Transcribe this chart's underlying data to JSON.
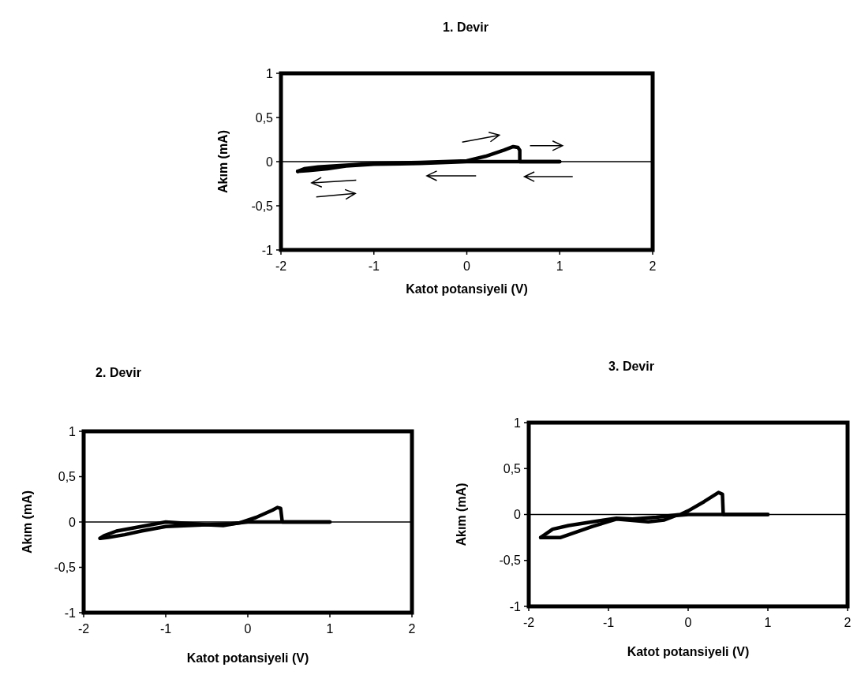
{
  "chart_data": [
    {
      "type": "line",
      "title": "1. Devir",
      "xlabel": "Katot potansiyeli (V)",
      "ylabel": "Akım (mA)",
      "xlim": [
        -2,
        2
      ],
      "ylim": [
        -1,
        1
      ],
      "xticks": [
        -2,
        -1,
        0,
        1,
        2
      ],
      "yticks": [
        {
          "value": -1,
          "label": "-1"
        },
        {
          "value": -0.5,
          "label": "-0,5"
        },
        {
          "value": 0,
          "label": "0"
        },
        {
          "value": 0.5,
          "label": "0,5"
        },
        {
          "value": 1,
          "label": "1"
        }
      ],
      "ref_lines": [
        {
          "axis": "y",
          "value": 0,
          "color": "#000000"
        }
      ],
      "series": [
        {
          "color": "#000000",
          "x": [
            -1.82,
            -1.7,
            -1.5,
            -1.3,
            -1.0,
            -0.5,
            0.0,
            0.5,
            1.0
          ],
          "values": [
            -0.11,
            -0.1,
            -0.08,
            -0.05,
            -0.03,
            -0.02,
            0.0,
            0.0,
            0.0
          ]
        },
        {
          "color": "#000000",
          "x": [
            -1.82,
            -1.75,
            -1.6,
            -1.3,
            -1.0,
            -0.5,
            0.0,
            0.2,
            0.4,
            0.5,
            0.55,
            0.57,
            0.57,
            0.8,
            1.0
          ],
          "values": [
            -0.11,
            -0.08,
            -0.06,
            -0.04,
            -0.02,
            -0.01,
            0.01,
            0.06,
            0.13,
            0.17,
            0.16,
            0.13,
            0.0,
            0.0,
            0.0
          ]
        }
      ]
    },
    {
      "type": "line",
      "title": "2. Devir",
      "xlabel": "Katot potansiyeli (V)",
      "ylabel": "Akım (mA)",
      "xlim": [
        -2,
        2
      ],
      "ylim": [
        -1,
        1
      ],
      "xticks": [
        -2,
        -1,
        0,
        1,
        2
      ],
      "yticks": [
        {
          "value": -1,
          "label": "-1"
        },
        {
          "value": -0.5,
          "label": "-0,5"
        },
        {
          "value": 0,
          "label": "0"
        },
        {
          "value": 0.5,
          "label": "0,5"
        },
        {
          "value": 1,
          "label": "1"
        }
      ],
      "ref_lines": [
        {
          "axis": "y",
          "value": 0,
          "color": "#000000"
        }
      ],
      "series": [
        {
          "color": "#000000",
          "x": [
            -1.8,
            -1.7,
            -1.5,
            -1.3,
            -1.0,
            -0.5,
            -0.2,
            0.0,
            0.42,
            1.0
          ],
          "values": [
            -0.18,
            -0.17,
            -0.14,
            -0.1,
            -0.05,
            -0.03,
            -0.02,
            0.0,
            0.0,
            0.0
          ]
        },
        {
          "color": "#000000",
          "x": [
            -1.8,
            -1.75,
            -1.6,
            -1.3,
            -1.0,
            -0.5,
            -0.3,
            -0.1,
            0.1,
            0.3,
            0.36,
            0.4,
            0.42,
            0.7,
            1.0
          ],
          "values": [
            -0.18,
            -0.15,
            -0.1,
            -0.05,
            0.0,
            -0.03,
            -0.04,
            -0.01,
            0.05,
            0.13,
            0.16,
            0.15,
            0.0,
            0.0,
            0.0
          ]
        }
      ]
    },
    {
      "type": "line",
      "title": "3. Devir",
      "xlabel": "Katot potansiyeli (V)",
      "ylabel": "Akım (mA)",
      "xlim": [
        -2,
        2
      ],
      "ylim": [
        -1,
        1
      ],
      "xticks": [
        -2,
        -1,
        0,
        1,
        2
      ],
      "yticks": [
        {
          "value": -1,
          "label": "-1"
        },
        {
          "value": -0.5,
          "label": "-0,5"
        },
        {
          "value": 0,
          "label": "0"
        },
        {
          "value": 0.5,
          "label": "0,5"
        },
        {
          "value": 1,
          "label": "1"
        }
      ],
      "ref_lines": [
        {
          "axis": "y",
          "value": 0,
          "color": "#000000"
        }
      ],
      "series": [
        {
          "color": "#000000",
          "x": [
            -1.85,
            -1.6,
            -1.2,
            -0.9,
            -0.5,
            -0.3,
            -0.15,
            0.0,
            0.44,
            1.0
          ],
          "values": [
            -0.25,
            -0.25,
            -0.13,
            -0.05,
            -0.08,
            -0.06,
            -0.01,
            0.0,
            0.0,
            0.0
          ]
        },
        {
          "color": "#000000",
          "x": [
            -1.85,
            -1.7,
            -1.5,
            -1.2,
            -0.9,
            -0.7,
            -0.4,
            -0.1,
            0.0,
            0.2,
            0.38,
            0.43,
            0.44,
            0.7,
            1.0
          ],
          "values": [
            -0.25,
            -0.16,
            -0.12,
            -0.08,
            -0.04,
            -0.05,
            -0.03,
            0.0,
            0.04,
            0.14,
            0.24,
            0.22,
            0.0,
            0.0,
            0.0
          ]
        }
      ]
    }
  ]
}
